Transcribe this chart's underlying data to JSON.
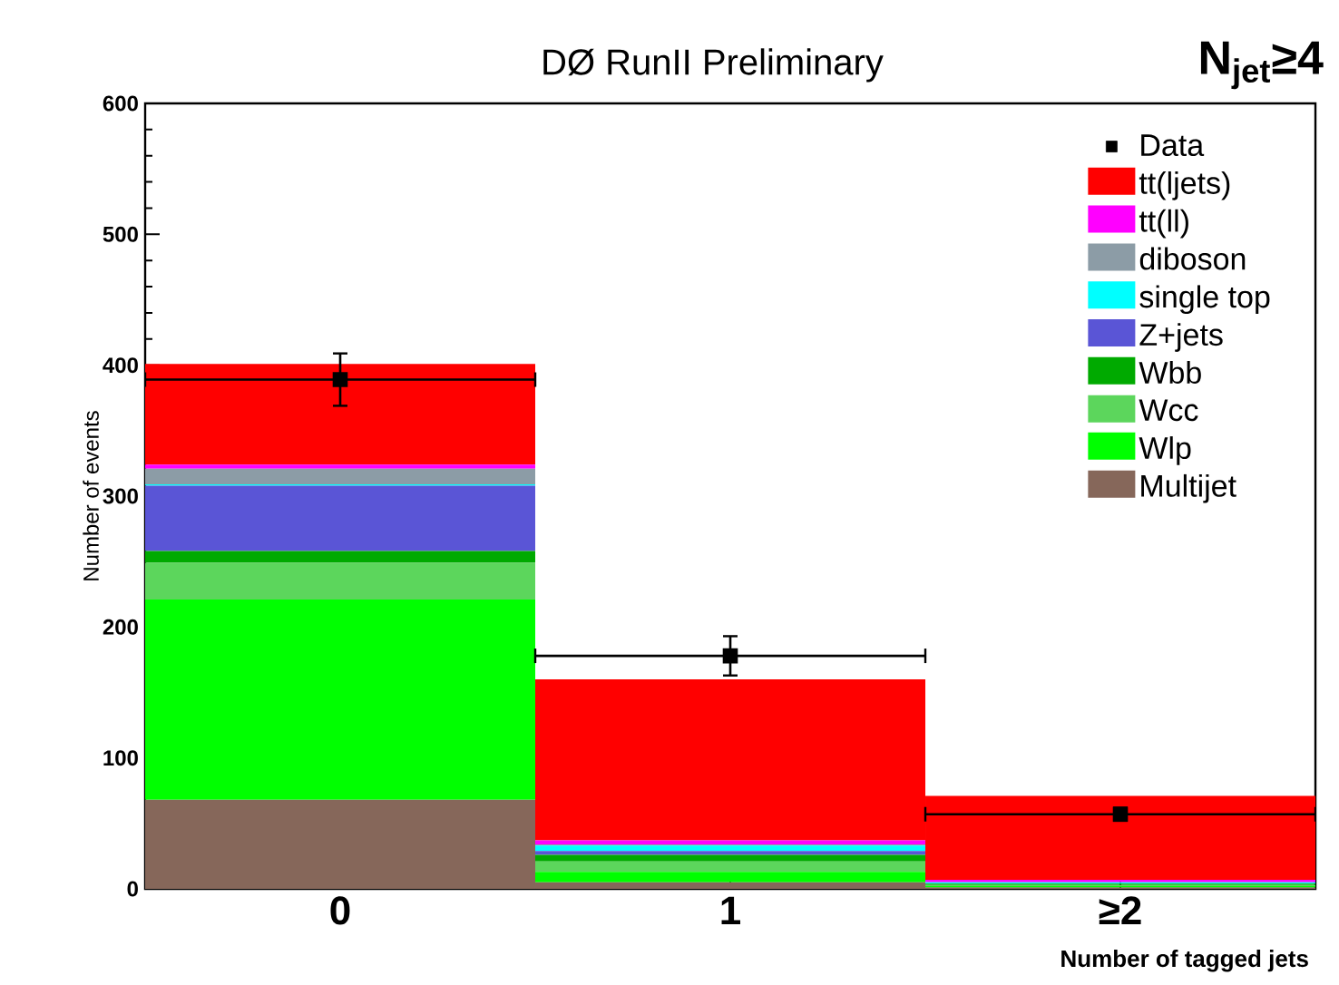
{
  "chart_data": {
    "type": "bar",
    "stacked": true,
    "title": "DØ RunII Preliminary",
    "xlabel": "Number of tagged jets",
    "ylabel": "Number of events",
    "annotations": [
      "N$_{jet}$≥4"
    ],
    "x": [
      0,
      1,
      2
    ],
    "xlim": [
      -0.5,
      2.5
    ],
    "xticks": [
      0,
      1,
      {
        "value": 2,
        "label": "≥2"
      }
    ],
    "ylim": [
      0,
      600
    ],
    "yticks": [
      0,
      100,
      200,
      300,
      400,
      500,
      600
    ],
    "legend": "top right",
    "grid": false,
    "series": [
      {
        "name": "Multijet",
        "color": "#86675a",
        "values": [
          68,
          5,
          1
        ]
      },
      {
        "name": "Wlp",
        "color": "#00ff00",
        "values": [
          153,
          8,
          1
        ]
      },
      {
        "name": "Wcc",
        "color": "#5cd65c",
        "values": [
          28,
          8,
          1
        ]
      },
      {
        "name": "Wbb",
        "color": "#00aa00",
        "values": [
          9,
          5,
          1
        ]
      },
      {
        "name": "Z+jets",
        "color": "#5a55d6",
        "values": [
          50,
          3,
          0
        ]
      },
      {
        "name": "single top",
        "color": "#00ffff",
        "values": [
          1,
          4,
          1
        ]
      },
      {
        "name": "diboson",
        "color": "#8c9ca6",
        "values": [
          12,
          1,
          0
        ]
      },
      {
        "name": "tt(ll)",
        "color": "#ff00ff",
        "values": [
          3,
          3,
          2
        ]
      },
      {
        "name": "tt(ljets)",
        "color": "#ff0000",
        "values": [
          77,
          123,
          64
        ]
      },
      {
        "name": "Data",
        "type": "scatter",
        "marker": "square",
        "color": "#000000",
        "x": [
          0,
          1,
          2
        ],
        "values": [
          389,
          178,
          57
        ],
        "errors": [
          20,
          15,
          5
        ],
        "xerrors": [
          0.5,
          0.5,
          0.5
        ]
      }
    ]
  }
}
